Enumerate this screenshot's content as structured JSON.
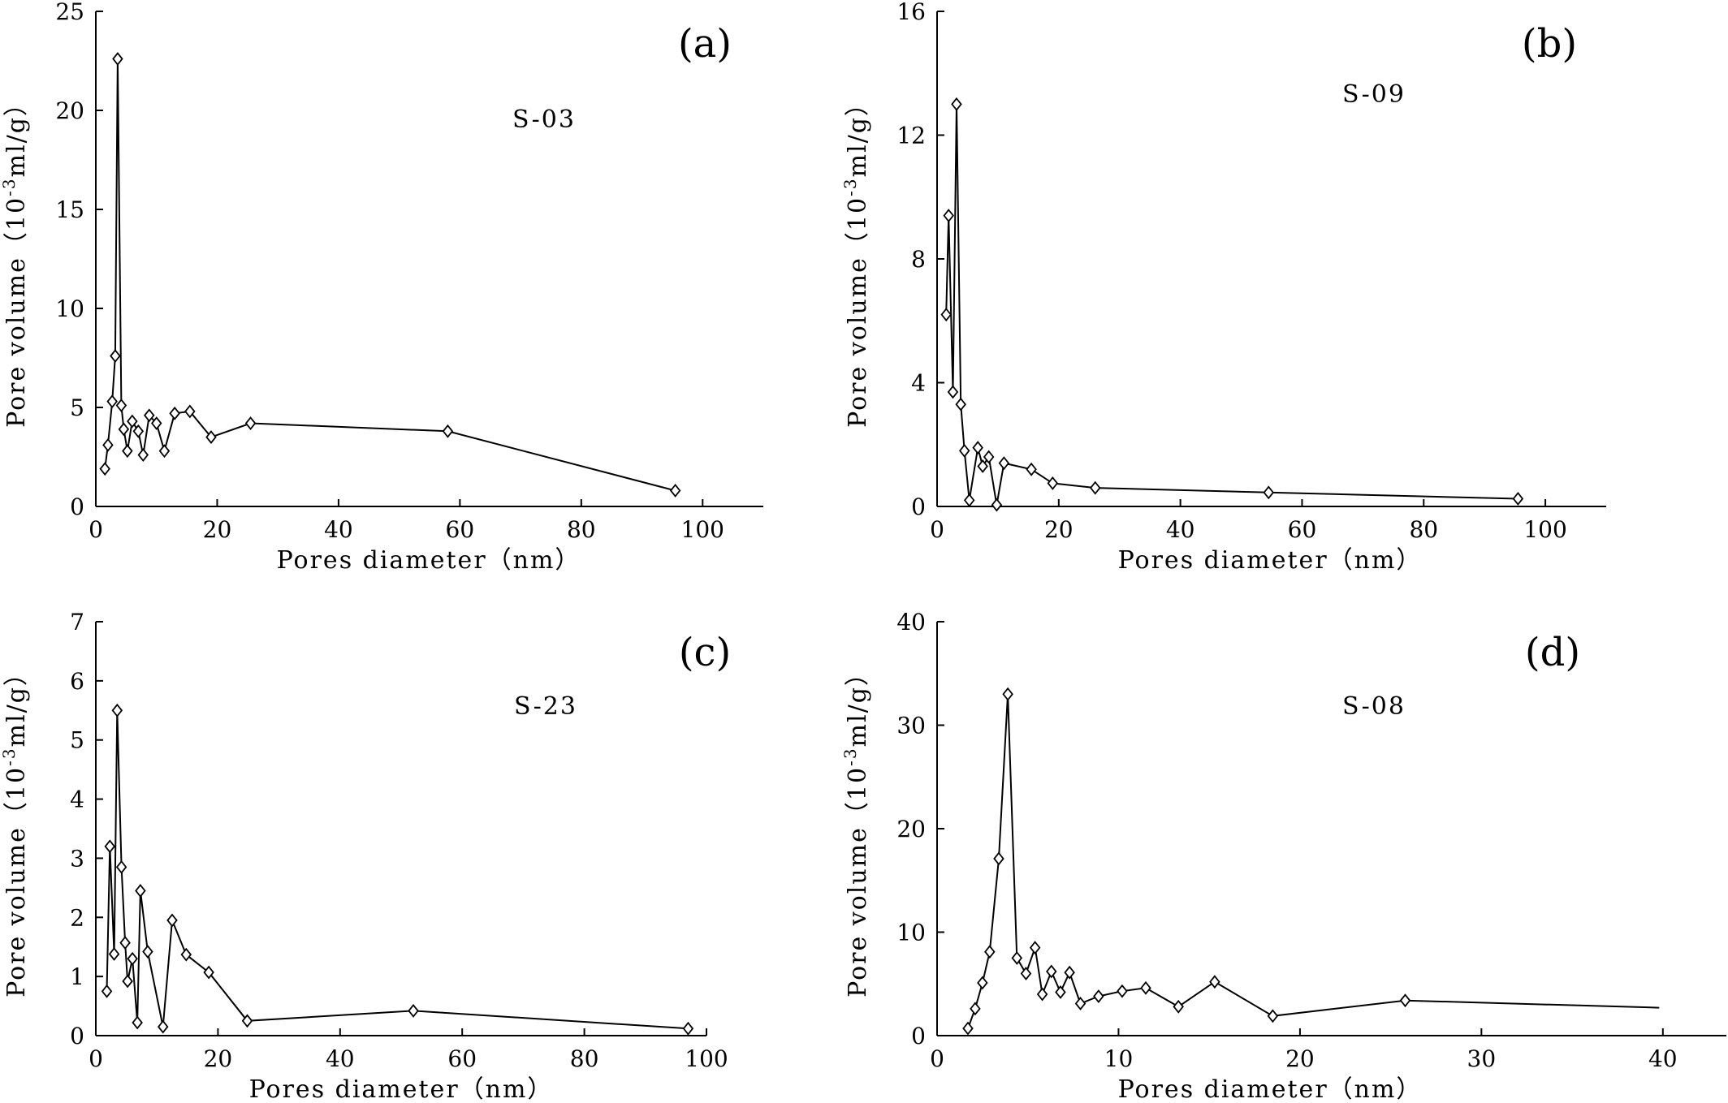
{
  "chart_data": [
    {
      "type": "line",
      "panel_label": "(a)",
      "annotation": "S-03",
      "xlabel": "Pores diameter（nm）",
      "ylabel_prefix": "Pore volume（10",
      "ylabel_exp": "-3",
      "ylabel_suffix": "ml/g）",
      "xlim": [
        0,
        110
      ],
      "ylim": [
        0,
        25
      ],
      "xticks": [
        0,
        20,
        40,
        60,
        80,
        100
      ],
      "yticks": [
        0,
        5,
        10,
        15,
        20,
        25
      ],
      "grid": false,
      "marker": "diamond",
      "x": [
        1.5,
        2.0,
        2.7,
        3.2,
        3.6,
        4.2,
        4.6,
        5.2,
        6.0,
        7.0,
        7.8,
        8.8,
        10.0,
        11.3,
        13.0,
        15.5,
        19.0,
        25.5,
        58.0,
        95.5
      ],
      "y": [
        1.9,
        3.1,
        5.3,
        7.6,
        22.6,
        5.1,
        3.9,
        2.8,
        4.3,
        3.8,
        2.6,
        4.6,
        4.2,
        2.8,
        4.7,
        4.8,
        3.5,
        4.2,
        3.8,
        0.8
      ]
    },
    {
      "type": "line",
      "panel_label": "(b)",
      "annotation": "S-09",
      "xlabel": "Pores diameter（nm）",
      "ylabel_prefix": "Pore volume（10",
      "ylabel_exp": "-3",
      "ylabel_suffix": "ml/g）",
      "xlim": [
        0,
        110
      ],
      "ylim": [
        0,
        16
      ],
      "xticks": [
        0,
        20,
        40,
        60,
        80,
        100
      ],
      "yticks": [
        0,
        4,
        8,
        12,
        16
      ],
      "grid": false,
      "marker": "diamond",
      "x": [
        1.5,
        1.9,
        2.6,
        3.2,
        3.9,
        4.5,
        5.3,
        6.7,
        7.5,
        8.5,
        9.8,
        11.0,
        15.5,
        19.0,
        26.0,
        54.5,
        95.5
      ],
      "y": [
        6.2,
        9.4,
        3.7,
        13.0,
        3.3,
        1.8,
        0.2,
        1.9,
        1.3,
        1.6,
        0.05,
        1.4,
        1.2,
        0.75,
        0.6,
        0.45,
        0.25
      ]
    },
    {
      "type": "line",
      "panel_label": "(c)",
      "annotation": "S-23",
      "xlabel": "Pores diameter（nm）",
      "ylabel_prefix": "Pore volume（10",
      "ylabel_exp": "-3",
      "ylabel_suffix": "ml/g）",
      "xlim": [
        0,
        100
      ],
      "ylim": [
        0,
        7
      ],
      "xticks": [
        0,
        20,
        40,
        60,
        80,
        100
      ],
      "yticks": [
        0,
        1,
        2,
        3,
        4,
        5,
        6,
        7
      ],
      "grid": false,
      "marker": "diamond",
      "x": [
        1.8,
        2.3,
        3.0,
        3.5,
        4.2,
        4.8,
        5.2,
        6.0,
        6.8,
        7.3,
        8.5,
        11.0,
        12.5,
        14.8,
        18.5,
        24.8,
        52.0,
        97.0
      ],
      "y": [
        0.75,
        3.2,
        1.38,
        5.5,
        2.85,
        1.57,
        0.92,
        1.3,
        0.22,
        2.45,
        1.42,
        0.15,
        1.95,
        1.37,
        1.07,
        0.25,
        0.42,
        0.12
      ]
    },
    {
      "type": "line",
      "panel_label": "(d)",
      "annotation": "S-08",
      "xlabel": "Pores diameter（nm）",
      "ylabel_prefix": "Pore volume（10",
      "ylabel_exp": "-3",
      "ylabel_suffix": "ml/g）",
      "xlim": [
        0,
        43.5
      ],
      "ylim": [
        0,
        40
      ],
      "xticks": [
        0,
        10,
        20,
        30,
        40
      ],
      "yticks": [
        0,
        10,
        20,
        30,
        40
      ],
      "grid": false,
      "marker": "diamond",
      "last_point_unmarked": true,
      "x": [
        1.7,
        2.1,
        2.5,
        2.9,
        3.4,
        3.9,
        4.4,
        4.9,
        5.4,
        5.8,
        6.3,
        6.8,
        7.3,
        7.9,
        8.9,
        10.2,
        11.5,
        13.3,
        15.3,
        18.5,
        25.8,
        39.8
      ],
      "y": [
        0.7,
        2.6,
        5.1,
        8.1,
        17.1,
        33.0,
        7.5,
        6.0,
        8.5,
        4.0,
        6.2,
        4.2,
        6.1,
        3.1,
        3.8,
        4.3,
        4.6,
        2.8,
        5.2,
        1.9,
        3.4,
        2.7
      ]
    }
  ]
}
